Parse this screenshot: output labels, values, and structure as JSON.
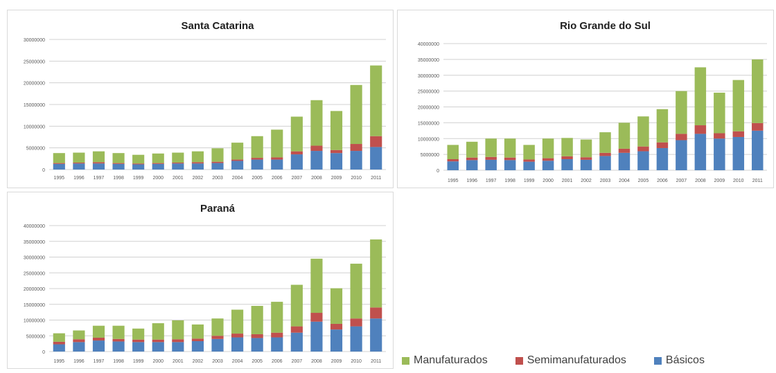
{
  "chart_data": [
    {
      "type": "bar",
      "stacked": true,
      "title": "Santa Catarina",
      "categories": [
        "1995",
        "1996",
        "1997",
        "1998",
        "1999",
        "2000",
        "2001",
        "2002",
        "2003",
        "2004",
        "2005",
        "2006",
        "2007",
        "2008",
        "2009",
        "2010",
        "2011"
      ],
      "series": [
        {
          "name": "Básicos",
          "values": [
            1300000,
            1400000,
            1400000,
            1300000,
            1200000,
            1300000,
            1400000,
            1400000,
            1500000,
            2000000,
            2300000,
            2300000,
            3500000,
            4300000,
            3800000,
            4300000,
            5200000
          ]
        },
        {
          "name": "Semimanufaturados",
          "values": [
            200000,
            200000,
            300000,
            200000,
            200000,
            200000,
            200000,
            300000,
            300000,
            300000,
            400000,
            500000,
            700000,
            1200000,
            700000,
            1600000,
            2500000
          ]
        },
        {
          "name": "Manufaturados",
          "values": [
            2300000,
            2300000,
            2500000,
            2300000,
            2000000,
            2200000,
            2300000,
            2500000,
            3100000,
            3900000,
            5000000,
            6400000,
            8000000,
            10500000,
            9000000,
            13600000,
            16300000
          ]
        }
      ],
      "ylim": [
        0,
        30000000
      ],
      "yticks": [
        "30000000",
        "25000000",
        "20000000",
        "15000000",
        "10000000",
        "5000000",
        "0"
      ],
      "grid": true
    },
    {
      "type": "bar",
      "stacked": true,
      "title": "Rio Grande do Sul",
      "categories": [
        "1995",
        "1996",
        "1997",
        "1998",
        "1999",
        "2000",
        "2001",
        "2002",
        "2003",
        "2004",
        "2005",
        "2006",
        "2007",
        "2008",
        "2009",
        "2010",
        "2011"
      ],
      "series": [
        {
          "name": "Básicos",
          "values": [
            2800000,
            3200000,
            3300000,
            3200000,
            2700000,
            3000000,
            3500000,
            3300000,
            4500000,
            5500000,
            6000000,
            7000000,
            9500000,
            11500000,
            10000000,
            10500000,
            12500000
          ]
        },
        {
          "name": "Semimanufaturados",
          "values": [
            700000,
            800000,
            900000,
            800000,
            700000,
            800000,
            900000,
            800000,
            1000000,
            1300000,
            1500000,
            1800000,
            2000000,
            2700000,
            1700000,
            1800000,
            2400000
          ]
        },
        {
          "name": "Manufaturados",
          "values": [
            4500000,
            5000000,
            5800000,
            6000000,
            4600000,
            6200000,
            5800000,
            5600000,
            6500000,
            8200000,
            9500000,
            10500000,
            13500000,
            18300000,
            12800000,
            16200000,
            20100000
          ]
        }
      ],
      "ylim": [
        0,
        40000000
      ],
      "yticks": [
        "40000000",
        "35000000",
        "30000000",
        "25000000",
        "20000000",
        "15000000",
        "10000000",
        "5000000",
        "0"
      ],
      "grid": true
    },
    {
      "type": "bar",
      "stacked": true,
      "title": "Paraná",
      "categories": [
        "1995",
        "1996",
        "1997",
        "1998",
        "1999",
        "2000",
        "2001",
        "2002",
        "2003",
        "2004",
        "2005",
        "2006",
        "2007",
        "2008",
        "2009",
        "2010",
        "2011"
      ],
      "series": [
        {
          "name": "Básicos",
          "values": [
            2300000,
            3000000,
            3500000,
            3200000,
            3000000,
            3000000,
            3000000,
            3300000,
            4000000,
            4500000,
            4300000,
            4500000,
            6000000,
            9500000,
            7000000,
            8000000,
            10500000
          ]
        },
        {
          "name": "Semimanufaturados",
          "values": [
            800000,
            900000,
            900000,
            800000,
            800000,
            800000,
            900000,
            800000,
            1000000,
            1200000,
            1200000,
            1500000,
            2000000,
            2800000,
            1800000,
            2500000,
            3500000
          ]
        },
        {
          "name": "Manufaturados",
          "values": [
            2700000,
            2800000,
            3800000,
            4200000,
            3500000,
            5200000,
            6000000,
            4500000,
            5500000,
            7600000,
            9000000,
            9800000,
            13200000,
            17200000,
            11300000,
            17400000,
            21600000
          ]
        }
      ],
      "ylim": [
        0,
        40000000
      ],
      "yticks": [
        "40000000",
        "35000000",
        "30000000",
        "25000000",
        "20000000",
        "15000000",
        "10000000",
        "5000000",
        "0"
      ],
      "grid": true
    }
  ],
  "legend": {
    "placement": "bottom-right",
    "items": [
      {
        "label": "Manufaturados",
        "color": "#9bbb59"
      },
      {
        "label": "Semimanufaturados",
        "color": "#c0504d"
      },
      {
        "label": "Básicos",
        "color": "#4f81bd"
      }
    ]
  },
  "colors": {
    "Manufaturados": "#9bbb59",
    "Semimanufaturados": "#c0504d",
    "Básicos": "#4f81bd"
  }
}
